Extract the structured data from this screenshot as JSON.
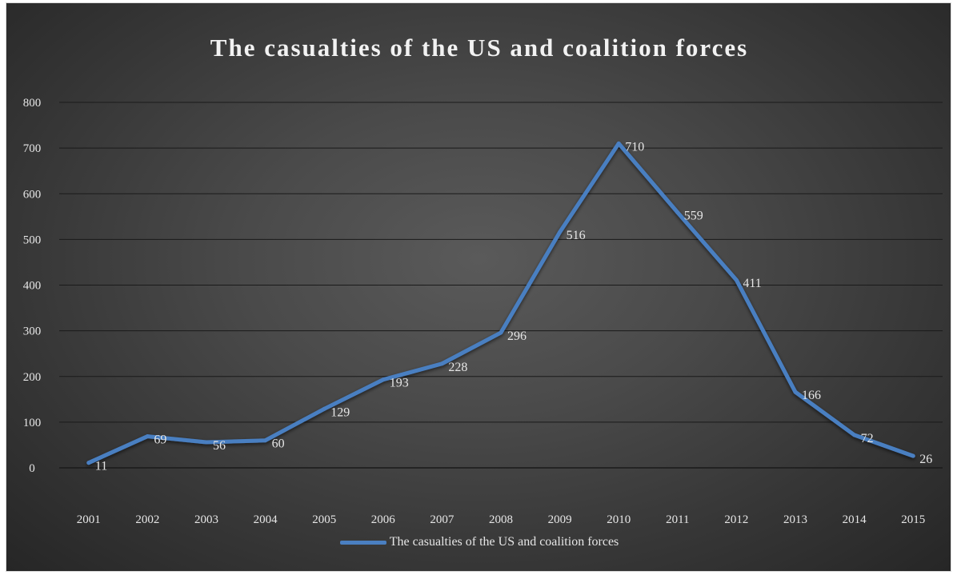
{
  "chart_data": {
    "type": "line",
    "title": "The casualties of the US and coalition forces",
    "categories": [
      "2001",
      "2002",
      "2003",
      "2004",
      "2005",
      "2006",
      "2007",
      "2008",
      "2009",
      "2010",
      "2011",
      "2012",
      "2013",
      "2014",
      "2015"
    ],
    "series": [
      {
        "name": "The casualties of the US and coalition forces",
        "values": [
          11,
          69,
          56,
          60,
          129,
          193,
          228,
          296,
          516,
          710,
          559,
          411,
          166,
          72,
          26
        ],
        "color": "#4a7fc1"
      }
    ],
    "ylim": [
      0,
      800
    ],
    "yticks": [
      "0",
      "100",
      "200",
      "300",
      "400",
      "500",
      "600",
      "700",
      "800"
    ],
    "grid": true,
    "legend_position": "bottom",
    "data_labels": true,
    "background": "#3d3d3d",
    "text_color": "#e6e6e6",
    "grid_color": "#1a1a1a"
  }
}
